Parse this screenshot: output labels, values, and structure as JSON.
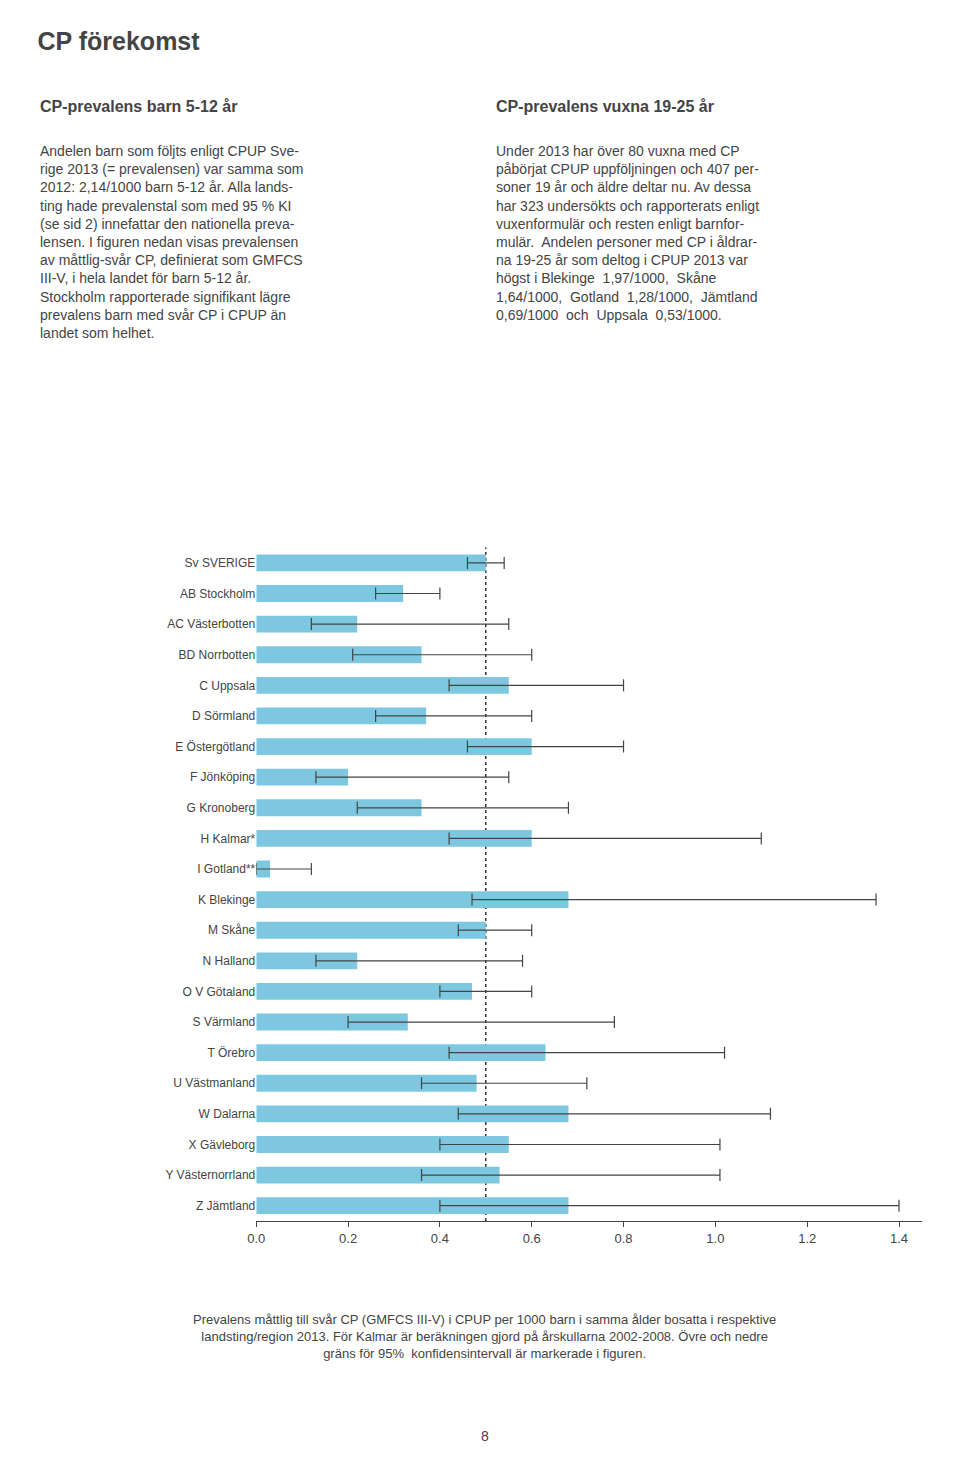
{
  "chart_data": {
    "type": "bar",
    "orientation": "horizontal",
    "title": "CP förekomst",
    "categories": [
      "Sv SVERIGE",
      "AB Stockholm",
      "AC Västerbotten",
      "BD Norrbotten",
      "C Uppsala",
      "D Sörmland",
      "E Östergötland",
      "F Jönköping",
      "G Kronoberg",
      "H Kalmar*",
      "I Gotland**",
      "K Blekinge",
      "M Skåne",
      "N Halland",
      "O V Götaland",
      "S Värmland",
      "T Örebro",
      "U Västmanland",
      "W Dalarna",
      "X Gävleborg",
      "Y Västernorrland",
      "Z Jämtland"
    ],
    "values": [
      0.5,
      0.32,
      0.22,
      0.36,
      0.55,
      0.37,
      0.6,
      0.2,
      0.36,
      0.6,
      0.03,
      0.68,
      0.5,
      0.22,
      0.47,
      0.33,
      0.63,
      0.48,
      0.68,
      0.55,
      0.53,
      0.68
    ],
    "ci_lower": [
      0.46,
      0.26,
      0.12,
      0.21,
      0.42,
      0.26,
      0.46,
      0.13,
      0.22,
      0.42,
      0.0,
      0.47,
      0.44,
      0.13,
      0.4,
      0.2,
      0.42,
      0.36,
      0.44,
      0.4,
      0.36,
      0.4
    ],
    "ci_upper": [
      0.54,
      0.4,
      0.55,
      0.6,
      0.8,
      0.6,
      0.8,
      0.55,
      0.68,
      1.1,
      0.12,
      1.35,
      0.6,
      0.58,
      0.6,
      0.78,
      1.02,
      0.72,
      1.12,
      1.01,
      1.01,
      1.4
    ],
    "color": "#7dc8e0",
    "reference_line": 0.5,
    "xlim": [
      0.0,
      1.45
    ],
    "xticks": [
      {
        "value": 0.0,
        "label": "0.0"
      },
      0.2,
      0.4,
      0.6,
      0.8,
      {
        "value": 1.0,
        "label": "1.0"
      },
      1.2,
      1.4
    ],
    "grid": false
  },
  "columns": [
    {
      "title": "CP-prevalens barn 5-12 år",
      "lines": [
        "Andelen barn som följts enligt CPUP Sve-",
        "rige 2013 (= prevalensen) var samma som",
        "2012: 2,14/1000 barn 5-12 år. Alla lands-",
        "ting hade prevalenstal som med 95 % KI",
        "(se sid 2) innefattar den nationella preva-",
        "lensen. I figuren nedan visas prevalensen",
        "av måttlig-svår CP, definierat som GMFCS",
        "III-V, i hela landet för barn 5-12 år.",
        "Stockholm rapporterade signifikant lägre",
        "prevalens barn med svår CP i CPUP än",
        "landet som helhet."
      ]
    },
    {
      "title": "CP-prevalens vuxna 19-25 år",
      "lines": [
        "Under 2013 har över 80 vuxna med CP",
        "påbörjat CPUP uppföljningen och 407 per-",
        "soner 19 år och äldre deltar nu. Av dessa",
        "har 323 undersökts och rapporterats enligt",
        "vuxenformulär och resten enligt barnfor-",
        "mulär.  Andelen personer med CP i åldrar-",
        "na 19-25 år som deltog i CPUP 2013 var",
        "högst i Blekinge  1,97/1000,  Skåne",
        "1,64/1000,  Gotland  1,28/1000,  Jämtland",
        "0,69/1000  och  Uppsala  0,53/1000."
      ]
    }
  ],
  "footer_lines": [
    "Prevalens måttlig till svår CP (GMFCS III-V) i CPUP per 1000 barn i samma ålder bosatta i respektive",
    "landsting/region 2013. För Kalmar är beräkningen gjord på årskullarna 2002-2008. Övre och nedre",
    "gräns för 95%  konfidensintervall är markerade i figuren."
  ],
  "page_number": "8"
}
